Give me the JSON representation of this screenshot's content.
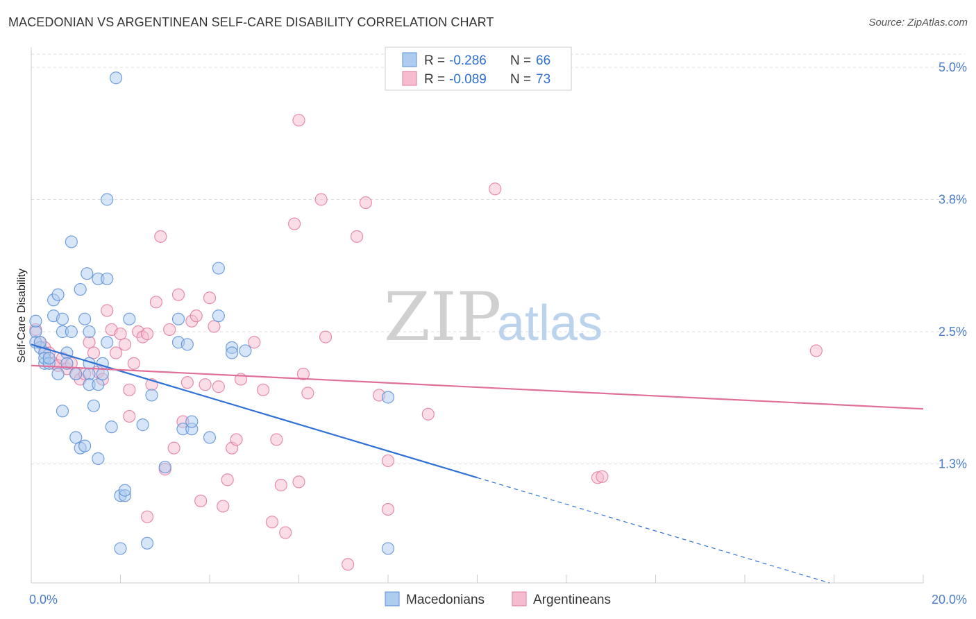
{
  "title": "MACEDONIAN VS ARGENTINEAN SELF-CARE DISABILITY CORRELATION CHART",
  "source": "Source: ZipAtlas.com",
  "watermark": {
    "part1": "ZIP",
    "part2": "atlas"
  },
  "legend": {
    "r_label": "R =",
    "n_label": "N =",
    "series": [
      {
        "r": "-0.286",
        "n": "66"
      },
      {
        "r": "-0.089",
        "n": "73"
      }
    ]
  },
  "bottom_legend": [
    "Macedonians",
    "Argentineans"
  ],
  "colors": {
    "blue_fill": "#aecbf0",
    "blue_stroke": "#5a8fd6",
    "blue_line": "#2f72d6",
    "pink_fill": "#f5bcd0",
    "pink_stroke": "#e07aa0",
    "pink_line": "#e0709a",
    "tick_text": "#4a7cc9",
    "grid": "#dddddd"
  },
  "chart_data": {
    "type": "scatter",
    "title": "MACEDONIAN VS ARGENTINEAN SELF-CARE DISABILITY CORRELATION CHART",
    "xlabel": "",
    "ylabel": "Self-Care Disability",
    "xlim": [
      0,
      20
    ],
    "ylim": [
      0.0,
      5.0
    ],
    "x_tick_labels": [
      "0.0%",
      "20.0%"
    ],
    "y_ticks": [
      1.25,
      2.5,
      3.75,
      5.0
    ],
    "y_tick_labels": [
      "1.3%",
      "2.5%",
      "3.8%",
      "5.0%"
    ],
    "grid": true,
    "legend_position": "top-center",
    "series": [
      {
        "name": "Macedonians",
        "color": "#aecbf0",
        "trend": {
          "x0": 0.0,
          "y0": 2.38,
          "x1": 10.0,
          "y1": 1.12,
          "dashed_to_x": 17.9
        },
        "points": [
          [
            0.1,
            2.5
          ],
          [
            0.1,
            2.6
          ],
          [
            0.1,
            2.4
          ],
          [
            0.2,
            2.35
          ],
          [
            0.2,
            2.4
          ],
          [
            0.3,
            2.3
          ],
          [
            0.3,
            2.2
          ],
          [
            0.3,
            2.25
          ],
          [
            0.4,
            2.2
          ],
          [
            0.4,
            2.25
          ],
          [
            0.5,
            2.8
          ],
          [
            0.5,
            2.65
          ],
          [
            0.6,
            2.85
          ],
          [
            0.6,
            2.1
          ],
          [
            0.7,
            2.62
          ],
          [
            0.7,
            2.5
          ],
          [
            0.7,
            1.75
          ],
          [
            0.8,
            2.3
          ],
          [
            0.8,
            2.2
          ],
          [
            0.9,
            2.5
          ],
          [
            0.9,
            3.35
          ],
          [
            1.0,
            1.5
          ],
          [
            1.0,
            2.1
          ],
          [
            1.1,
            2.9
          ],
          [
            1.1,
            1.4
          ],
          [
            1.2,
            2.62
          ],
          [
            1.2,
            1.42
          ],
          [
            1.3,
            2.2
          ],
          [
            1.3,
            2.1
          ],
          [
            1.25,
            3.05
          ],
          [
            1.3,
            2.5
          ],
          [
            1.3,
            2.0
          ],
          [
            1.4,
            1.8
          ],
          [
            1.5,
            3.0
          ],
          [
            1.5,
            2.0
          ],
          [
            1.5,
            1.3
          ],
          [
            1.6,
            2.2
          ],
          [
            1.6,
            2.1
          ],
          [
            1.7,
            3.0
          ],
          [
            1.7,
            2.4
          ],
          [
            1.7,
            3.75
          ],
          [
            1.8,
            1.6
          ],
          [
            1.9,
            4.9
          ],
          [
            2.0,
            0.95
          ],
          [
            2.0,
            0.45
          ],
          [
            2.1,
            0.95
          ],
          [
            2.1,
            1.0
          ],
          [
            2.2,
            2.62
          ],
          [
            2.5,
            1.62
          ],
          [
            2.6,
            0.5
          ],
          [
            2.7,
            1.9
          ],
          [
            3.0,
            1.22
          ],
          [
            3.3,
            2.62
          ],
          [
            3.3,
            2.4
          ],
          [
            3.4,
            1.58
          ],
          [
            3.5,
            2.38
          ],
          [
            3.6,
            1.58
          ],
          [
            3.6,
            1.65
          ],
          [
            4.0,
            1.5
          ],
          [
            4.2,
            3.1
          ],
          [
            4.2,
            2.65
          ],
          [
            4.5,
            2.35
          ],
          [
            4.5,
            2.3
          ],
          [
            4.8,
            2.32
          ],
          [
            8.0,
            1.88
          ],
          [
            8.0,
            0.45
          ]
        ]
      },
      {
        "name": "Argentineans",
        "color": "#f5bcd0",
        "trend": {
          "x0": 0.0,
          "y0": 2.18,
          "x1": 20.0,
          "y1": 1.77
        },
        "points": [
          [
            0.1,
            2.52
          ],
          [
            0.2,
            2.4
          ],
          [
            0.3,
            2.35
          ],
          [
            0.4,
            2.3
          ],
          [
            0.5,
            2.2
          ],
          [
            0.6,
            2.18
          ],
          [
            0.7,
            2.25
          ],
          [
            0.8,
            2.15
          ],
          [
            0.9,
            2.2
          ],
          [
            1.0,
            2.1
          ],
          [
            1.1,
            2.05
          ],
          [
            1.2,
            2.1
          ],
          [
            1.3,
            2.4
          ],
          [
            1.4,
            2.3
          ],
          [
            1.5,
            2.12
          ],
          [
            1.6,
            2.05
          ],
          [
            1.7,
            2.7
          ],
          [
            1.8,
            2.52
          ],
          [
            1.9,
            2.3
          ],
          [
            2.0,
            2.48
          ],
          [
            2.1,
            2.38
          ],
          [
            2.2,
            1.95
          ],
          [
            2.2,
            1.7
          ],
          [
            2.3,
            2.2
          ],
          [
            2.4,
            2.5
          ],
          [
            2.5,
            2.45
          ],
          [
            2.6,
            2.48
          ],
          [
            2.6,
            0.75
          ],
          [
            2.7,
            2.0
          ],
          [
            2.8,
            2.78
          ],
          [
            2.9,
            3.4
          ],
          [
            3.0,
            1.2
          ],
          [
            3.1,
            2.52
          ],
          [
            3.2,
            1.4
          ],
          [
            3.3,
            2.85
          ],
          [
            3.4,
            1.65
          ],
          [
            3.5,
            2.02
          ],
          [
            3.6,
            2.6
          ],
          [
            3.7,
            2.65
          ],
          [
            3.8,
            0.9
          ],
          [
            3.9,
            2.0
          ],
          [
            4.0,
            2.82
          ],
          [
            4.1,
            2.55
          ],
          [
            4.2,
            1.98
          ],
          [
            4.3,
            0.85
          ],
          [
            4.4,
            1.1
          ],
          [
            4.5,
            1.4
          ],
          [
            4.6,
            1.48
          ],
          [
            4.7,
            2.05
          ],
          [
            5.0,
            2.4
          ],
          [
            5.2,
            1.95
          ],
          [
            5.4,
            0.7
          ],
          [
            5.5,
            1.48
          ],
          [
            5.6,
            1.05
          ],
          [
            5.7,
            0.6
          ],
          [
            5.9,
            3.52
          ],
          [
            6.0,
            1.08
          ],
          [
            6.1,
            2.1
          ],
          [
            6.2,
            1.92
          ],
          [
            6.5,
            3.75
          ],
          [
            6.6,
            2.45
          ],
          [
            7.1,
            0.3
          ],
          [
            7.3,
            3.4
          ],
          [
            7.5,
            3.72
          ],
          [
            7.8,
            1.9
          ],
          [
            8.0,
            1.28
          ],
          [
            8.0,
            0.82
          ],
          [
            8.9,
            1.72
          ],
          [
            10.4,
            3.85
          ],
          [
            12.7,
            1.12
          ],
          [
            12.8,
            1.13
          ],
          [
            17.6,
            2.32
          ],
          [
            6.0,
            4.5
          ]
        ]
      }
    ]
  }
}
